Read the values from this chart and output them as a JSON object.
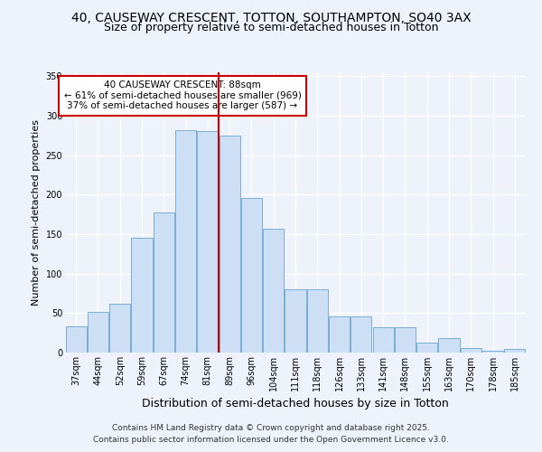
{
  "title": "40, CAUSEWAY CRESCENT, TOTTON, SOUTHAMPTON, SO40 3AX",
  "subtitle": "Size of property relative to semi-detached houses in Totton",
  "xlabel": "Distribution of semi-detached houses by size in Totton",
  "ylabel": "Number of semi-detached properties",
  "categories": [
    "37sqm",
    "44sqm",
    "52sqm",
    "59sqm",
    "67sqm",
    "74sqm",
    "81sqm",
    "89sqm",
    "96sqm",
    "104sqm",
    "111sqm",
    "118sqm",
    "126sqm",
    "133sqm",
    "141sqm",
    "148sqm",
    "155sqm",
    "163sqm",
    "170sqm",
    "178sqm",
    "185sqm"
  ],
  "bar_heights": [
    33,
    52,
    62,
    145,
    178,
    282,
    281,
    275,
    196,
    157,
    80,
    80,
    46,
    46,
    32,
    32,
    13,
    18,
    6,
    2,
    5
  ],
  "bar_color": "#ccdff5",
  "bar_edge_color": "#7aadd4",
  "vline_color": "#cc0000",
  "ylim": [
    0,
    355
  ],
  "yticks": [
    0,
    50,
    100,
    150,
    200,
    250,
    300,
    350
  ],
  "annotation_title": "40 CAUSEWAY CRESCENT: 88sqm",
  "annotation_line1": "← 61% of semi-detached houses are smaller (969)",
  "annotation_line2": "37% of semi-detached houses are larger (587) →",
  "annotation_box_color": "#ffffff",
  "annotation_box_edge": "#cc0000",
  "footer1": "Contains HM Land Registry data © Crown copyright and database right 2025.",
  "footer2": "Contains public sector information licensed under the Open Government Licence v3.0.",
  "bg_color": "#eef2fb",
  "grid_color": "#ffffff",
  "title_fontsize": 10,
  "subtitle_fontsize": 9,
  "xlabel_fontsize": 9,
  "ylabel_fontsize": 8,
  "tick_fontsize": 7,
  "annot_fontsize": 7.5,
  "footer_fontsize": 6.5
}
